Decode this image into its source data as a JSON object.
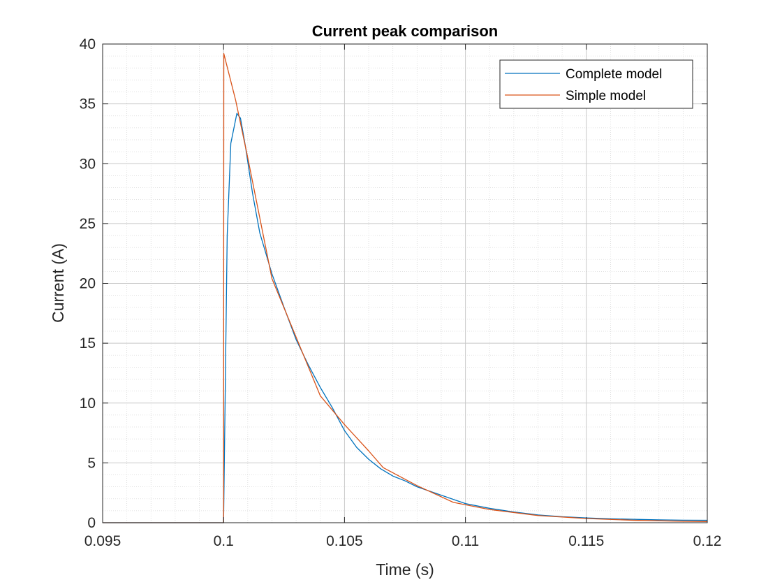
{
  "chart_data": {
    "type": "line",
    "title": "Current peak comparison",
    "xlabel": "Time (s)",
    "ylabel": "Current (A)",
    "xlim": [
      0.095,
      0.12
    ],
    "ylim": [
      0,
      40
    ],
    "x_ticks": [
      0.095,
      0.1,
      0.105,
      0.11,
      0.115,
      0.12
    ],
    "x_tick_labels": [
      "0.095",
      "0.1",
      "0.105",
      "0.11",
      "0.115",
      "0.12"
    ],
    "y_ticks": [
      0,
      5,
      10,
      15,
      20,
      25,
      30,
      35,
      40
    ],
    "y_tick_labels": [
      "0",
      "5",
      "10",
      "15",
      "20",
      "25",
      "30",
      "35",
      "40"
    ],
    "grid": true,
    "minor_grid": true,
    "legend_position": "top-right",
    "series": [
      {
        "name": "Complete model",
        "color": "#0072BD",
        "points": [
          [
            0.095,
            0
          ],
          [
            0.1,
            0
          ],
          [
            0.10015,
            24
          ],
          [
            0.1003,
            31.7
          ],
          [
            0.10055,
            34.2
          ],
          [
            0.1007,
            33.8
          ],
          [
            0.1009,
            31.5
          ],
          [
            0.1012,
            27.5
          ],
          [
            0.1015,
            24.2
          ],
          [
            0.102,
            20.8
          ],
          [
            0.1025,
            18.0
          ],
          [
            0.103,
            15.3
          ],
          [
            0.1035,
            13.2
          ],
          [
            0.104,
            11.3
          ],
          [
            0.1045,
            9.6
          ],
          [
            0.105,
            7.7
          ],
          [
            0.1055,
            6.3
          ],
          [
            0.106,
            5.3
          ],
          [
            0.1065,
            4.5
          ],
          [
            0.107,
            3.9
          ],
          [
            0.1075,
            3.5
          ],
          [
            0.108,
            3.0
          ],
          [
            0.109,
            2.3
          ],
          [
            0.11,
            1.6
          ],
          [
            0.111,
            1.2
          ],
          [
            0.112,
            0.9
          ],
          [
            0.113,
            0.65
          ],
          [
            0.114,
            0.5
          ],
          [
            0.115,
            0.4
          ],
          [
            0.116,
            0.33
          ],
          [
            0.117,
            0.28
          ],
          [
            0.118,
            0.24
          ],
          [
            0.119,
            0.21
          ],
          [
            0.12,
            0.2
          ]
        ]
      },
      {
        "name": "Simple model",
        "color": "#D95319",
        "points": [
          [
            0.095,
            0
          ],
          [
            0.1,
            0
          ],
          [
            0.10001,
            39.2
          ],
          [
            0.1005,
            35.3
          ],
          [
            0.101,
            30.5
          ],
          [
            0.102,
            20.4
          ],
          [
            0.103,
            15.5
          ],
          [
            0.104,
            10.6
          ],
          [
            0.105,
            8.2
          ],
          [
            0.106,
            6.0
          ],
          [
            0.1066,
            4.6
          ],
          [
            0.108,
            3.1
          ],
          [
            0.1095,
            1.7
          ],
          [
            0.111,
            1.1
          ],
          [
            0.113,
            0.6
          ],
          [
            0.115,
            0.35
          ],
          [
            0.117,
            0.2
          ],
          [
            0.119,
            0.12
          ],
          [
            0.12,
            0.1
          ]
        ]
      }
    ]
  }
}
